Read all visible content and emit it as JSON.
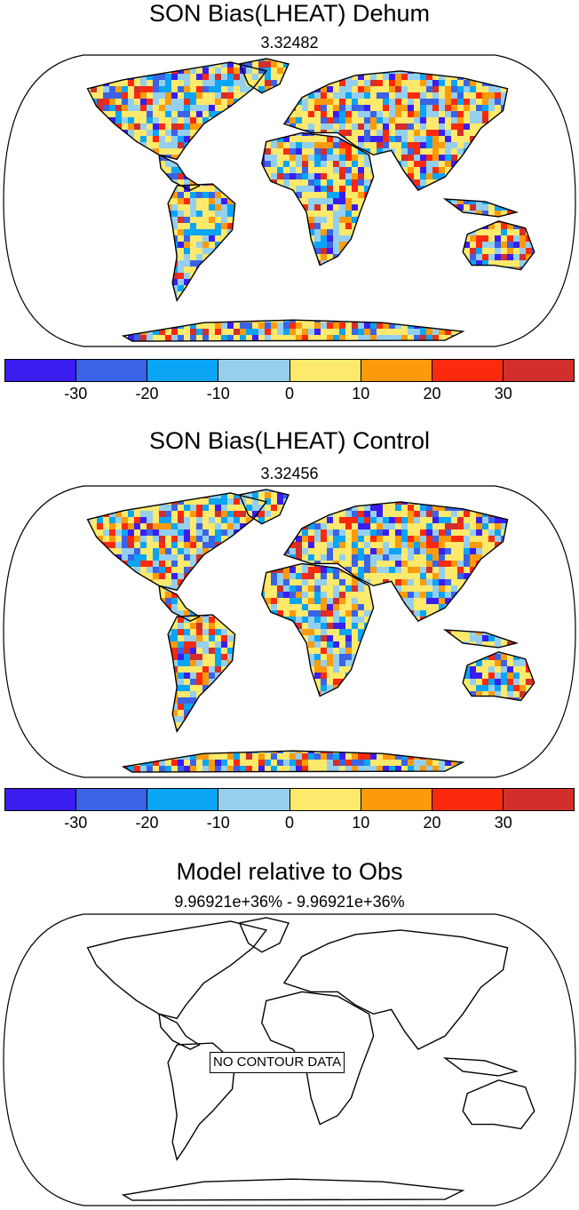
{
  "panels": [
    {
      "title": "SON Bias(LHEAT) Dehum",
      "subtitle": "3.32482",
      "has_data": true
    },
    {
      "title": "SON Bias(LHEAT) Control",
      "subtitle": "3.32456",
      "has_data": true
    },
    {
      "title": "Model relative to Obs",
      "subtitle": "9.96921e+36% - 9.96921e+36%",
      "has_data": false
    }
  ],
  "colorbar": {
    "colors": [
      "#3a1ef0",
      "#3b63e6",
      "#0aa5f5",
      "#94cfee",
      "#fde96b",
      "#fb9b0b",
      "#fb2a0c",
      "#d22f2c"
    ],
    "ticks": [
      "-30",
      "-20",
      "-10",
      "0",
      "10",
      "20",
      "30"
    ]
  },
  "no_data_label": "NO CONTOUR DATA"
}
